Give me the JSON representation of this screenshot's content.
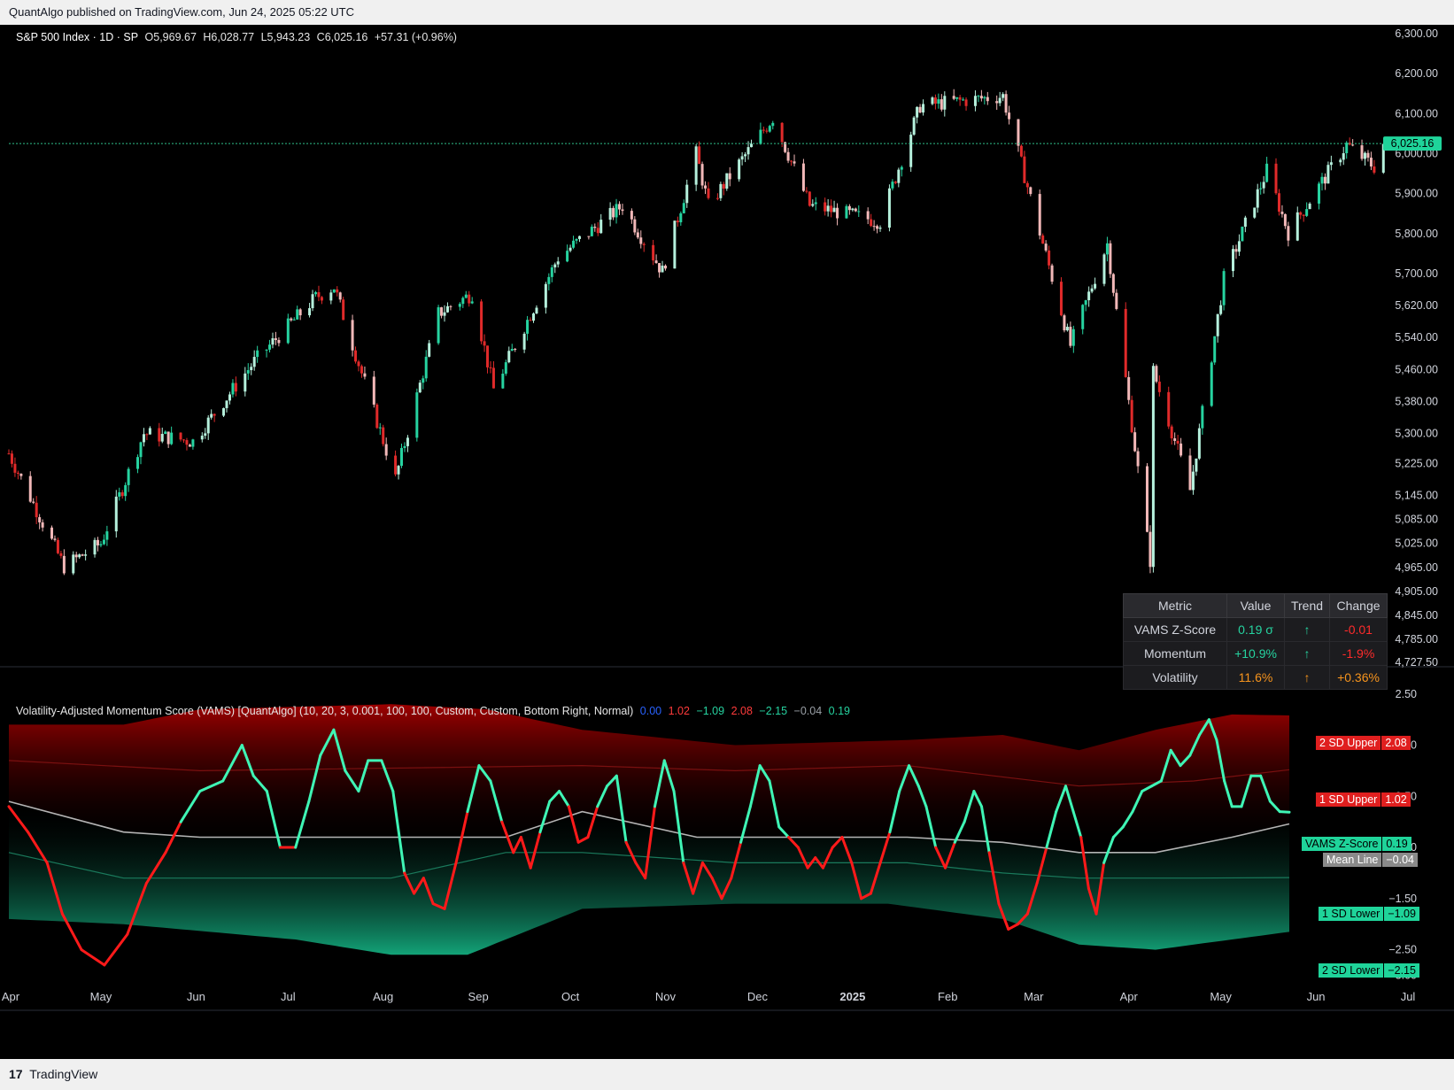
{
  "header": {
    "publish_text": "QuantAlgo published on TradingView.com, Jun 24, 2025 05:22 UTC"
  },
  "footer": {
    "brand": "TradingView",
    "logo_glyph": "17"
  },
  "colors": {
    "up": "#26d3a0",
    "down": "#e02a2a",
    "vams_up": "#3ff5b5",
    "vams_down": "#ff1a1a",
    "mean": "#b4b4b4",
    "price_line": "#2fbf8a"
  },
  "price_legend": {
    "symbol": "S&P 500 Index · 1D · SP",
    "open": "O5,969.67",
    "high": "H6,028.77",
    "low": "L5,943.23",
    "close": "C6,025.16",
    "change": "+57.31 (+0.96%)"
  },
  "indicator_legend": {
    "title": "Volatility-Adjusted Momentum Score (VAMS) [QuantAlgo] (10, 20, 3, 0.001, 100, 100, Custom, Custom, Bottom Right, Normal)",
    "values": [
      {
        "text": "0.00",
        "color": "#2962ff"
      },
      {
        "text": "1.02",
        "color": "#ff3b3b"
      },
      {
        "text": "−1.09",
        "color": "#26d3a0"
      },
      {
        "text": "2.08",
        "color": "#ff3b3b"
      },
      {
        "text": "−2.15",
        "color": "#26d3a0"
      },
      {
        "text": "−0.04",
        "color": "#9aa0a6"
      },
      {
        "text": "0.19",
        "color": "#26d3a0"
      }
    ]
  },
  "price_axis": [
    "6,300.00",
    "6,200.00",
    "6,100.00",
    "6,000.00",
    "5,900.00",
    "5,800.00",
    "5,700.00",
    "5,620.00",
    "5,540.00",
    "5,460.00",
    "5,380.00",
    "5,300.00",
    "5,225.00",
    "5,145.00",
    "5,085.00",
    "5,025.00",
    "4,965.00",
    "4,905.00",
    "4,845.00",
    "4,785.00",
    "4,727.50"
  ],
  "price_last_label": "6,025.16",
  "vams_axis": [
    "2.50",
    "1.50",
    "0.50",
    "−0.50",
    "−1.50",
    "−2.50",
    "−3.00"
  ],
  "time_axis": [
    "Apr",
    "May",
    "Jun",
    "Jul",
    "Aug",
    "Sep",
    "Oct",
    "Nov",
    "Dec",
    "2025",
    "Feb",
    "Mar",
    "Apr",
    "May",
    "Jun",
    "Jul"
  ],
  "vams_tags": [
    {
      "label": "2 SD Upper",
      "value": "2.08",
      "bg": "#e01f1f"
    },
    {
      "label": "1 SD Upper",
      "value": "1.02",
      "bg": "#e01f1f"
    },
    {
      "label": "VAMS Z-Score",
      "value": "0.19",
      "bg": "#1fd49a"
    },
    {
      "label": "Mean Line",
      "value": "−0.04",
      "bg": "#8a8a8a"
    },
    {
      "label": "1 SD Lower",
      "value": "−1.09",
      "bg": "#1fd49a"
    },
    {
      "label": "2 SD Lower",
      "value": "−2.15",
      "bg": "#1fd49a"
    }
  ],
  "metric_table": {
    "headers": [
      "Metric",
      "Value",
      "Trend",
      "Change"
    ],
    "rows": [
      {
        "metric": "VAMS Z-Score",
        "value": "0.19 σ",
        "trend": "↑",
        "change": "-0.01",
        "value_color": "#26d3a0",
        "trend_color": "#26d3a0",
        "change_color": "#ff2b2b"
      },
      {
        "metric": "Momentum",
        "value": "+10.9%",
        "trend": "↑",
        "change": "-1.9%",
        "value_color": "#26d3a0",
        "trend_color": "#26d3a0",
        "change_color": "#ff2b2b"
      },
      {
        "metric": "Volatility",
        "value": "11.6%",
        "trend": "↑",
        "change": "+0.36%",
        "value_color": "#f7941d",
        "trend_color": "#f7941d",
        "change_color": "#f7941d"
      }
    ]
  },
  "chart_data": [
    {
      "type": "candlestick",
      "title": "S&P 500 Index · 1D · SP",
      "x_range": [
        "2024-04-01",
        "2025-07-01"
      ],
      "ylim": [
        4727.5,
        6300
      ],
      "last_close": 6025.16,
      "close_path": [
        [
          "2024-04-01",
          5250
        ],
        [
          "2024-04-19",
          4967
        ],
        [
          "2024-05-01",
          5025
        ],
        [
          "2024-05-15",
          5300
        ],
        [
          "2024-05-31",
          5280
        ],
        [
          "2024-06-20",
          5480
        ],
        [
          "2024-07-10",
          5640
        ],
        [
          "2024-07-16",
          5667
        ],
        [
          "2024-08-05",
          5186
        ],
        [
          "2024-08-19",
          5600
        ],
        [
          "2024-08-30",
          5650
        ],
        [
          "2024-09-06",
          5410
        ],
        [
          "2024-09-27",
          5740
        ],
        [
          "2024-10-18",
          5870
        ],
        [
          "2024-10-31",
          5705
        ],
        [
          "2024-11-11",
          6000
        ],
        [
          "2024-11-15",
          5870
        ],
        [
          "2024-12-06",
          6090
        ],
        [
          "2024-12-18",
          5870
        ],
        [
          "2025-01-10",
          5830
        ],
        [
          "2025-01-23",
          6120
        ],
        [
          "2025-02-19",
          6144
        ],
        [
          "2025-03-13",
          5520
        ],
        [
          "2025-03-25",
          5775
        ],
        [
          "2025-04-08",
          4982
        ],
        [
          "2025-04-09",
          5456
        ],
        [
          "2025-04-21",
          5158
        ],
        [
          "2025-05-02",
          5687
        ],
        [
          "2025-05-16",
          5958
        ],
        [
          "2025-05-23",
          5802
        ],
        [
          "2025-06-11",
          6022
        ],
        [
          "2025-06-20",
          5967
        ],
        [
          "2025-06-23",
          6025
        ]
      ]
    },
    {
      "type": "line",
      "title": "Volatility-Adjusted Momentum Score (VAMS) [QuantAlgo]",
      "ylim": [
        -3.2,
        2.6
      ],
      "series": [
        {
          "name": "VAMS Z-Score",
          "last": 0.19,
          "values": [
            [
              0,
              0.3
            ],
            [
              10,
              -0.2
            ],
            [
              20,
              -0.8
            ],
            [
              28,
              -1.8
            ],
            [
              38,
              -2.5
            ],
            [
              50,
              -2.8
            ],
            [
              62,
              -2.2
            ],
            [
              72,
              -1.2
            ],
            [
              82,
              -0.6
            ],
            [
              90,
              0.0
            ],
            [
              100,
              0.6
            ],
            [
              112,
              0.8
            ],
            [
              122,
              1.5
            ],
            [
              128,
              0.9
            ],
            [
              135,
              0.6
            ],
            [
              142,
              -0.5
            ],
            [
              150,
              -0.5
            ],
            [
              157,
              0.4
            ],
            [
              163,
              1.3
            ],
            [
              170,
              1.8
            ],
            [
              176,
              1.0
            ],
            [
              183,
              0.6
            ],
            [
              188,
              1.2
            ],
            [
              195,
              1.2
            ],
            [
              201,
              0.6
            ],
            [
              207,
              -1.0
            ],
            [
              212,
              -1.4
            ],
            [
              217,
              -1.1
            ],
            [
              222,
              -1.6
            ],
            [
              228,
              -1.7
            ],
            [
              234,
              -0.8
            ],
            [
              240,
              0.2
            ],
            [
              246,
              1.1
            ],
            [
              252,
              0.8
            ],
            [
              258,
              0.0
            ],
            [
              264,
              -0.6
            ],
            [
              268,
              -0.3
            ],
            [
              273,
              -0.9
            ],
            [
              278,
              -0.2
            ],
            [
              283,
              0.4
            ],
            [
              288,
              0.6
            ],
            [
              293,
              0.3
            ],
            [
              298,
              -0.4
            ],
            [
              303,
              -0.3
            ],
            [
              308,
              0.3
            ],
            [
              313,
              0.7
            ],
            [
              318,
              0.9
            ],
            [
              323,
              -0.4
            ],
            [
              328,
              -0.8
            ],
            [
              333,
              -1.1
            ],
            [
              338,
              0.3
            ],
            [
              343,
              1.2
            ],
            [
              348,
              0.6
            ],
            [
              353,
              -0.8
            ],
            [
              358,
              -1.4
            ],
            [
              363,
              -0.8
            ],
            [
              368,
              -1.1
            ],
            [
              373,
              -1.5
            ],
            [
              378,
              -1.1
            ],
            [
              383,
              -0.4
            ],
            [
              388,
              0.3
            ],
            [
              393,
              1.1
            ],
            [
              398,
              0.8
            ],
            [
              403,
              -0.1
            ],
            [
              408,
              -0.3
            ],
            [
              413,
              -0.5
            ],
            [
              418,
              -0.9
            ],
            [
              422,
              -0.7
            ],
            [
              426,
              -0.9
            ],
            [
              431,
              -0.5
            ],
            [
              436,
              -0.3
            ],
            [
              441,
              -0.8
            ],
            [
              446,
              -1.5
            ],
            [
              451,
              -1.4
            ],
            [
              456,
              -0.8
            ],
            [
              461,
              -0.2
            ],
            [
              466,
              0.6
            ],
            [
              471,
              1.1
            ],
            [
              476,
              0.7
            ],
            [
              480,
              0.3
            ],
            [
              485,
              -0.5
            ],
            [
              490,
              -0.9
            ],
            [
              495,
              -0.4
            ],
            [
              500,
              0.0
            ],
            [
              505,
              0.6
            ],
            [
              509,
              0.3
            ],
            [
              513,
              -0.6
            ],
            [
              518,
              -1.6
            ],
            [
              523,
              -2.1
            ],
            [
              528,
              -2.0
            ],
            [
              533,
              -1.8
            ],
            [
              538,
              -1.2
            ],
            [
              543,
              -0.5
            ],
            [
              548,
              0.2
            ],
            [
              553,
              0.7
            ],
            [
              557,
              0.2
            ],
            [
              561,
              -0.3
            ],
            [
              565,
              -1.3
            ],
            [
              569,
              -1.8
            ],
            [
              573,
              -0.8
            ],
            [
              578,
              -0.3
            ],
            [
              583,
              -0.1
            ],
            [
              588,
              0.2
            ],
            [
              593,
              0.6
            ],
            [
              598,
              0.7
            ],
            [
              603,
              0.8
            ],
            [
              608,
              1.4
            ],
            [
              613,
              1.1
            ],
            [
              618,
              1.3
            ],
            [
              623,
              1.7
            ],
            [
              628,
              2.0
            ],
            [
              632,
              1.6
            ],
            [
              636,
              0.8
            ],
            [
              640,
              0.3
            ],
            [
              645,
              0.3
            ],
            [
              650,
              0.9
            ],
            [
              655,
              0.9
            ],
            [
              660,
              0.4
            ],
            [
              665,
              0.2
            ],
            [
              670,
              0.19
            ]
          ]
        },
        {
          "name": "Mean Line",
          "last": -0.04,
          "values": [
            [
              0,
              0.4
            ],
            [
              60,
              -0.2
            ],
            [
              100,
              -0.3
            ],
            [
              200,
              -0.3
            ],
            [
              260,
              -0.3
            ],
            [
              300,
              0.2
            ],
            [
              360,
              -0.3
            ],
            [
              420,
              -0.3
            ],
            [
              470,
              -0.3
            ],
            [
              520,
              -0.4
            ],
            [
              560,
              -0.6
            ],
            [
              600,
              -0.6
            ],
            [
              640,
              -0.3
            ],
            [
              670,
              -0.04
            ]
          ]
        },
        {
          "name": "1 SD Upper",
          "last": 1.02,
          "values": [
            [
              0,
              1.2
            ],
            [
              100,
              1.0
            ],
            [
              300,
              1.1
            ],
            [
              380,
              1.0
            ],
            [
              470,
              1.1
            ],
            [
              560,
              0.7
            ],
            [
              620,
              0.8
            ],
            [
              670,
              1.02
            ]
          ]
        },
        {
          "name": "2 SD Upper",
          "last": 2.08,
          "values": [
            [
              0,
              1.9
            ],
            [
              60,
              1.9
            ],
            [
              100,
              2.2
            ],
            [
              200,
              2.3
            ],
            [
              250,
              2.2
            ],
            [
              300,
              1.8
            ],
            [
              380,
              1.5
            ],
            [
              470,
              1.6
            ],
            [
              520,
              1.7
            ],
            [
              560,
              1.4
            ],
            [
              600,
              1.8
            ],
            [
              640,
              2.1
            ],
            [
              670,
              2.08
            ]
          ]
        },
        {
          "name": "1 SD Lower",
          "last": -1.09,
          "values": [
            [
              0,
              -0.6
            ],
            [
              60,
              -1.1
            ],
            [
              200,
              -1.1
            ],
            [
              260,
              -0.6
            ],
            [
              300,
              -0.6
            ],
            [
              380,
              -0.8
            ],
            [
              470,
              -0.8
            ],
            [
              520,
              -1.0
            ],
            [
              560,
              -1.1
            ],
            [
              620,
              -1.1
            ],
            [
              670,
              -1.09
            ]
          ]
        },
        {
          "name": "2 SD Lower",
          "last": -2.15,
          "values": [
            [
              0,
              -1.9
            ],
            [
              60,
              -2.0
            ],
            [
              150,
              -2.3
            ],
            [
              200,
              -2.6
            ],
            [
              240,
              -2.6
            ],
            [
              300,
              -1.7
            ],
            [
              380,
              -1.6
            ],
            [
              460,
              -1.6
            ],
            [
              520,
              -1.9
            ],
            [
              560,
              -2.4
            ],
            [
              600,
              -2.5
            ],
            [
              640,
              -2.3
            ],
            [
              670,
              -2.15
            ]
          ]
        }
      ]
    }
  ]
}
